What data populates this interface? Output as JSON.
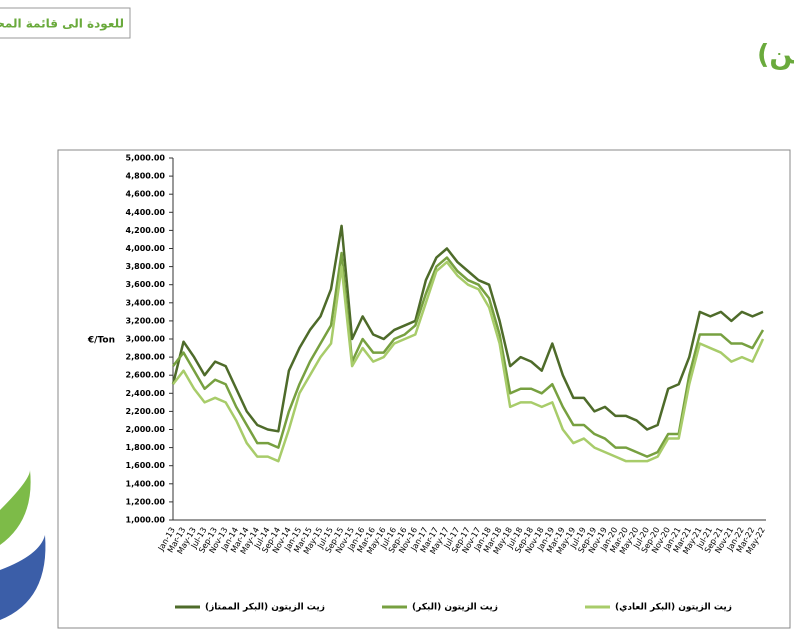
{
  "chart_data": {
    "type": "line",
    "back_button": "للعودة الى قائمة المحتو",
    "title": "اتجاه اسعارزيت الزيتون العالمية (يورو/ طن)",
    "y_label": "€/Ton",
    "categories": [
      "Jan-13",
      "Mar-13",
      "May-13",
      "Jul-13",
      "Sep-13",
      "Nov-13",
      "Jan-14",
      "Mar-14",
      "May-14",
      "Jul-14",
      "Sep-14",
      "Nov-14",
      "Jan-15",
      "Mar-15",
      "May-15",
      "Jul-15",
      "Sep-15",
      "Nov-15",
      "Jan-16",
      "Mar-16",
      "May-16",
      "Jul-16",
      "Sep-16",
      "Nov-16",
      "Jan-17",
      "Mar-17",
      "May-17",
      "Jul-17",
      "Sep-17",
      "Nov-17",
      "Jan-18",
      "Mar-18",
      "May-18",
      "Jul-18",
      "Sep-18",
      "Nov-18",
      "Jan-19",
      "Mar-19",
      "May-19",
      "Jul-19",
      "Sep-19",
      "Nov-19",
      "Jan-20",
      "Mar-20",
      "May-20",
      "Jul-20",
      "Sep-20",
      "Nov-20",
      "Jan-21",
      "Mar-21",
      "May-21",
      "Jul-21",
      "Sep-21",
      "Nov-21",
      "Jan-22",
      "Mar-22",
      "May-22"
    ],
    "series": [
      {
        "name": "زيت الزيتون (البكر الممتاز)",
        "color": "#4e6b2a",
        "values": [
          2500,
          2970,
          2800,
          2600,
          2750,
          2700,
          2450,
          2200,
          2050,
          2000,
          1980,
          2650,
          2900,
          3100,
          3250,
          3550,
          4250,
          3000,
          3250,
          3050,
          3000,
          3100,
          3150,
          3200,
          3650,
          3900,
          4000,
          3850,
          3750,
          3650,
          3600,
          3200,
          2700,
          2800,
          2750,
          2650,
          2950,
          2600,
          2350,
          2350,
          2200,
          2250,
          2150,
          2150,
          2100,
          2000,
          2050,
          2450,
          2500,
          2800,
          3300,
          3250,
          3300,
          3200,
          3300,
          3250,
          3300
        ]
      },
      {
        "name": "زيت الزيتون (البكر)",
        "color": "#77a040",
        "values": [
          2700,
          2850,
          2650,
          2450,
          2550,
          2500,
          2250,
          2050,
          1850,
          1850,
          1800,
          2200,
          2500,
          2750,
          2950,
          3150,
          3950,
          2750,
          3000,
          2850,
          2850,
          3000,
          3050,
          3150,
          3500,
          3800,
          3900,
          3750,
          3650,
          3600,
          3450,
          3050,
          2400,
          2450,
          2450,
          2400,
          2500,
          2250,
          2050,
          2050,
          1950,
          1900,
          1800,
          1800,
          1750,
          1700,
          1750,
          1950,
          1950,
          2600,
          3050,
          3050,
          3050,
          2950,
          2950,
          2900,
          3100
        ]
      },
      {
        "name": "زيت الزيتون (البكر العادي)",
        "color": "#a8cc6a",
        "values": [
          2500,
          2650,
          2450,
          2300,
          2350,
          2300,
          2100,
          1850,
          1700,
          1700,
          1650,
          2000,
          2400,
          2600,
          2800,
          2950,
          3800,
          2700,
          2900,
          2750,
          2800,
          2950,
          3000,
          3050,
          3400,
          3750,
          3850,
          3700,
          3600,
          3550,
          3350,
          2950,
          2250,
          2300,
          2300,
          2250,
          2300,
          2000,
          1850,
          1900,
          1800,
          1750,
          1700,
          1650,
          1650,
          1650,
          1700,
          1900,
          1900,
          2500,
          2950,
          2900,
          2850,
          2750,
          2800,
          2750,
          3000
        ]
      }
    ],
    "ylim": [
      1000,
      5000
    ],
    "yticks": [
      {
        "value": 1000,
        "label": "1,000.00"
      },
      {
        "value": 1200,
        "label": "1,200.00"
      },
      {
        "value": 1400,
        "label": "1,400.00"
      },
      {
        "value": 1600,
        "label": "1,600.00"
      },
      {
        "value": 1800,
        "label": "1,800.00"
      },
      {
        "value": 2000,
        "label": "2,000.00"
      },
      {
        "value": 2200,
        "label": "2,200.00"
      },
      {
        "value": 2400,
        "label": "2,400.00"
      },
      {
        "value": 2600,
        "label": "2,600.00"
      },
      {
        "value": 2800,
        "label": "2,800.00"
      },
      {
        "value": 3000,
        "label": "3,000.00"
      },
      {
        "value": 3200,
        "label": "3,200.00"
      },
      {
        "value": 3400,
        "label": "3,400.00"
      },
      {
        "value": 3600,
        "label": "3,600.00"
      },
      {
        "value": 3800,
        "label": "3,800.00"
      },
      {
        "value": 4000,
        "label": "4,000.00"
      },
      {
        "value": 4200,
        "label": "4,200.00"
      },
      {
        "value": 4400,
        "label": "4,400.00"
      },
      {
        "value": 4600,
        "label": "4,600.00"
      },
      {
        "value": 4800,
        "label": "4,800.00"
      },
      {
        "value": 5000,
        "label": "5,000.00"
      }
    ],
    "grid": false
  }
}
